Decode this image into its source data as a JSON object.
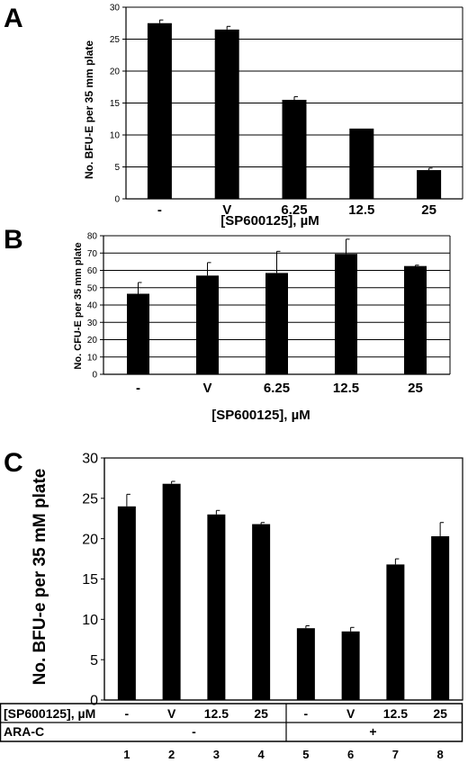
{
  "chart_data": [
    {
      "panel": "A",
      "type": "bar",
      "categories": [
        "-",
        "V",
        "6.25",
        "12.5",
        "25"
      ],
      "values": [
        27.5,
        26.5,
        15.5,
        11.0,
        4.5
      ],
      "errors": [
        0.5,
        0.5,
        0.5,
        0.0,
        0.3
      ],
      "xlabel": "[SP600125], µM",
      "ylabel": "No. BFU-E per 35 mm plate",
      "ylim": [
        0,
        30
      ],
      "yticks": [
        0,
        5,
        10,
        15,
        20,
        25,
        30
      ],
      "grid": true
    },
    {
      "panel": "B",
      "type": "bar",
      "categories": [
        "-",
        "V",
        "6.25",
        "12.5",
        "25"
      ],
      "values": [
        46.5,
        57.0,
        58.5,
        69.5,
        62.5
      ],
      "errors": [
        6.5,
        7.5,
        12.5,
        8.5,
        0.5
      ],
      "xlabel": "[SP600125], µM",
      "ylabel": "No. CFU-E per 35 mm plate",
      "ylim": [
        0,
        80
      ],
      "yticks": [
        0,
        10,
        20,
        30,
        40,
        50,
        60,
        70,
        80
      ],
      "grid": true
    },
    {
      "panel": "C",
      "type": "bar",
      "categories": [
        "1",
        "2",
        "3",
        "4",
        "5",
        "6",
        "7",
        "8"
      ],
      "values": [
        24.0,
        26.8,
        23.0,
        21.8,
        8.9,
        8.5,
        16.8,
        20.3
      ],
      "errors": [
        1.5,
        0.3,
        0.5,
        0.2,
        0.3,
        0.5,
        0.7,
        1.7
      ],
      "ylabel": "No. BFU-e per 35 mM plate",
      "ylim": [
        0,
        30
      ],
      "yticks": [
        0,
        5,
        10,
        15,
        20,
        25,
        30
      ],
      "grid": false,
      "table": {
        "row1_label": "[SP600125], µM",
        "row1_values": [
          "-",
          "V",
          "12.5",
          "25",
          "-",
          "V",
          "12.5",
          "25"
        ],
        "row2_label": "ARA-C",
        "row2_groups": [
          "-",
          "+"
        ]
      }
    }
  ]
}
